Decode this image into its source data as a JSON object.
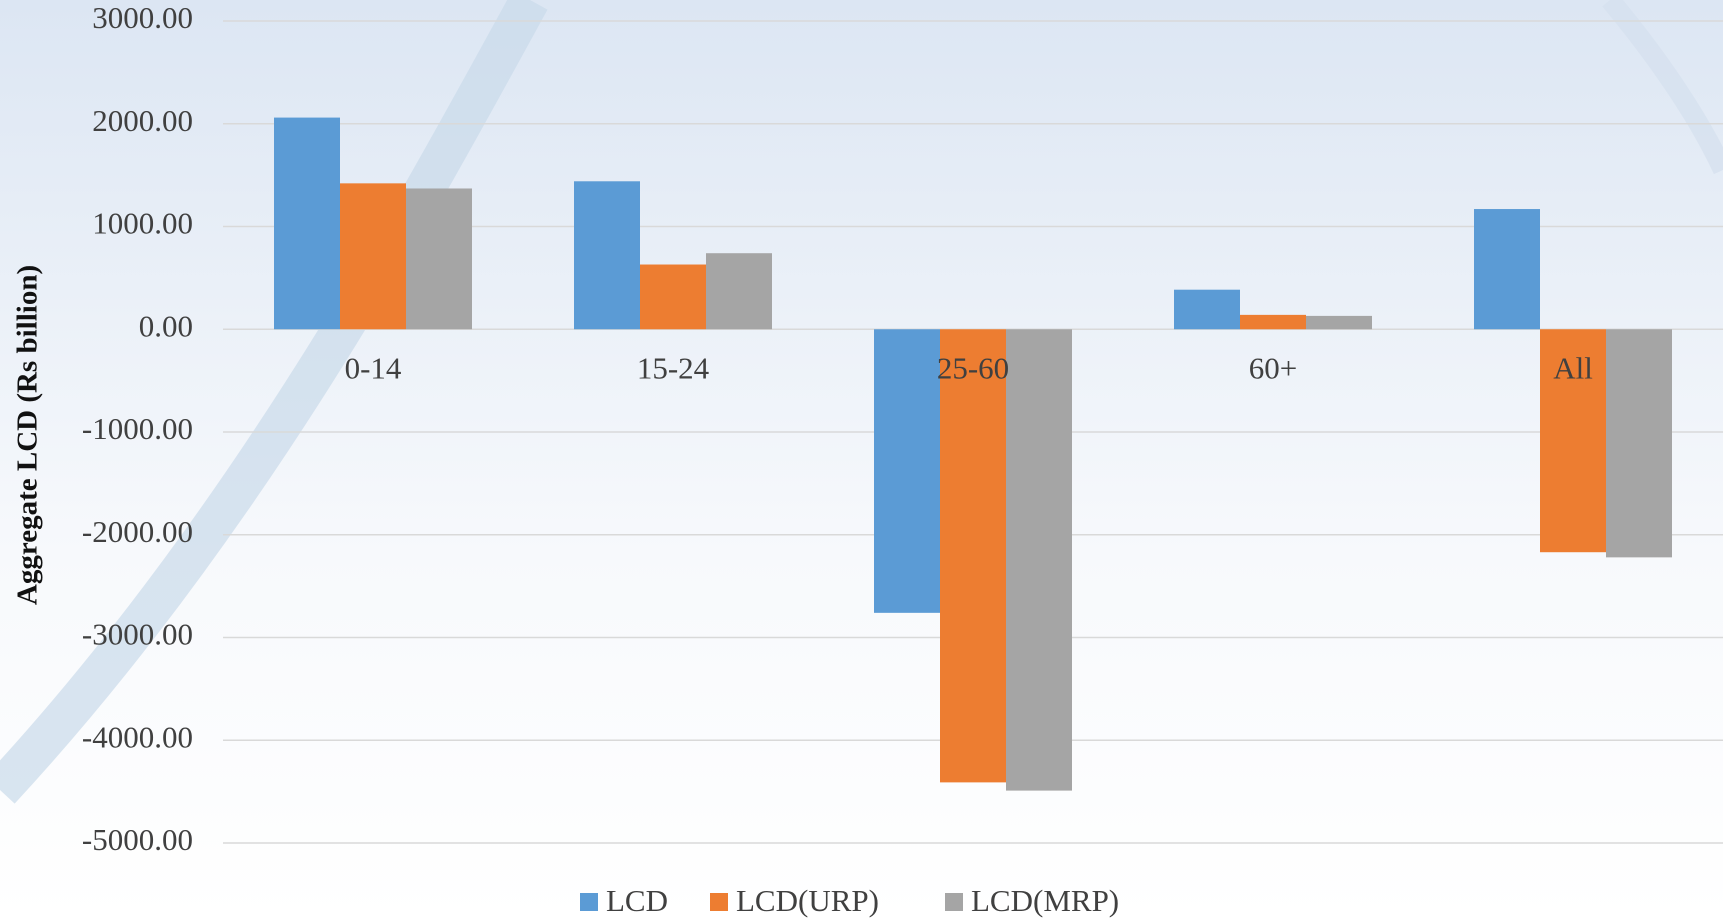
{
  "chart_data": {
    "type": "bar",
    "y_label": "Aggregate LCD (Rs billion)",
    "categories": [
      "0-14",
      "15-24",
      "25-60",
      "60+",
      "All"
    ],
    "series": [
      {
        "name": "LCD",
        "color": "#5b9bd5",
        "values": [
          2060,
          1440,
          -2760,
          385,
          1170
        ]
      },
      {
        "name": "LCD(URP)",
        "color": "#ed7d31",
        "values": [
          1420,
          630,
          -4410,
          140,
          -2170
        ]
      },
      {
        "name": "LCD(MRP)",
        "color": "#a5a5a5",
        "values": [
          1370,
          740,
          -4490,
          130,
          -2220
        ]
      }
    ],
    "ylim": [
      -5000,
      3000
    ],
    "yticks": [
      {
        "value": -5000,
        "label": "-5000.00"
      },
      {
        "value": -4000,
        "label": "-4000.00"
      },
      {
        "value": -3000,
        "label": "-3000.00"
      },
      {
        "value": -2000,
        "label": "-2000.00"
      },
      {
        "value": -1000,
        "label": "-1000.00"
      },
      {
        "value": 0,
        "label": "0.00"
      },
      {
        "value": 1000,
        "label": "1000.00"
      },
      {
        "value": 2000,
        "label": "2000.00"
      },
      {
        "value": 3000,
        "label": "3000.00"
      }
    ],
    "grid": true,
    "legend": "bottom"
  }
}
